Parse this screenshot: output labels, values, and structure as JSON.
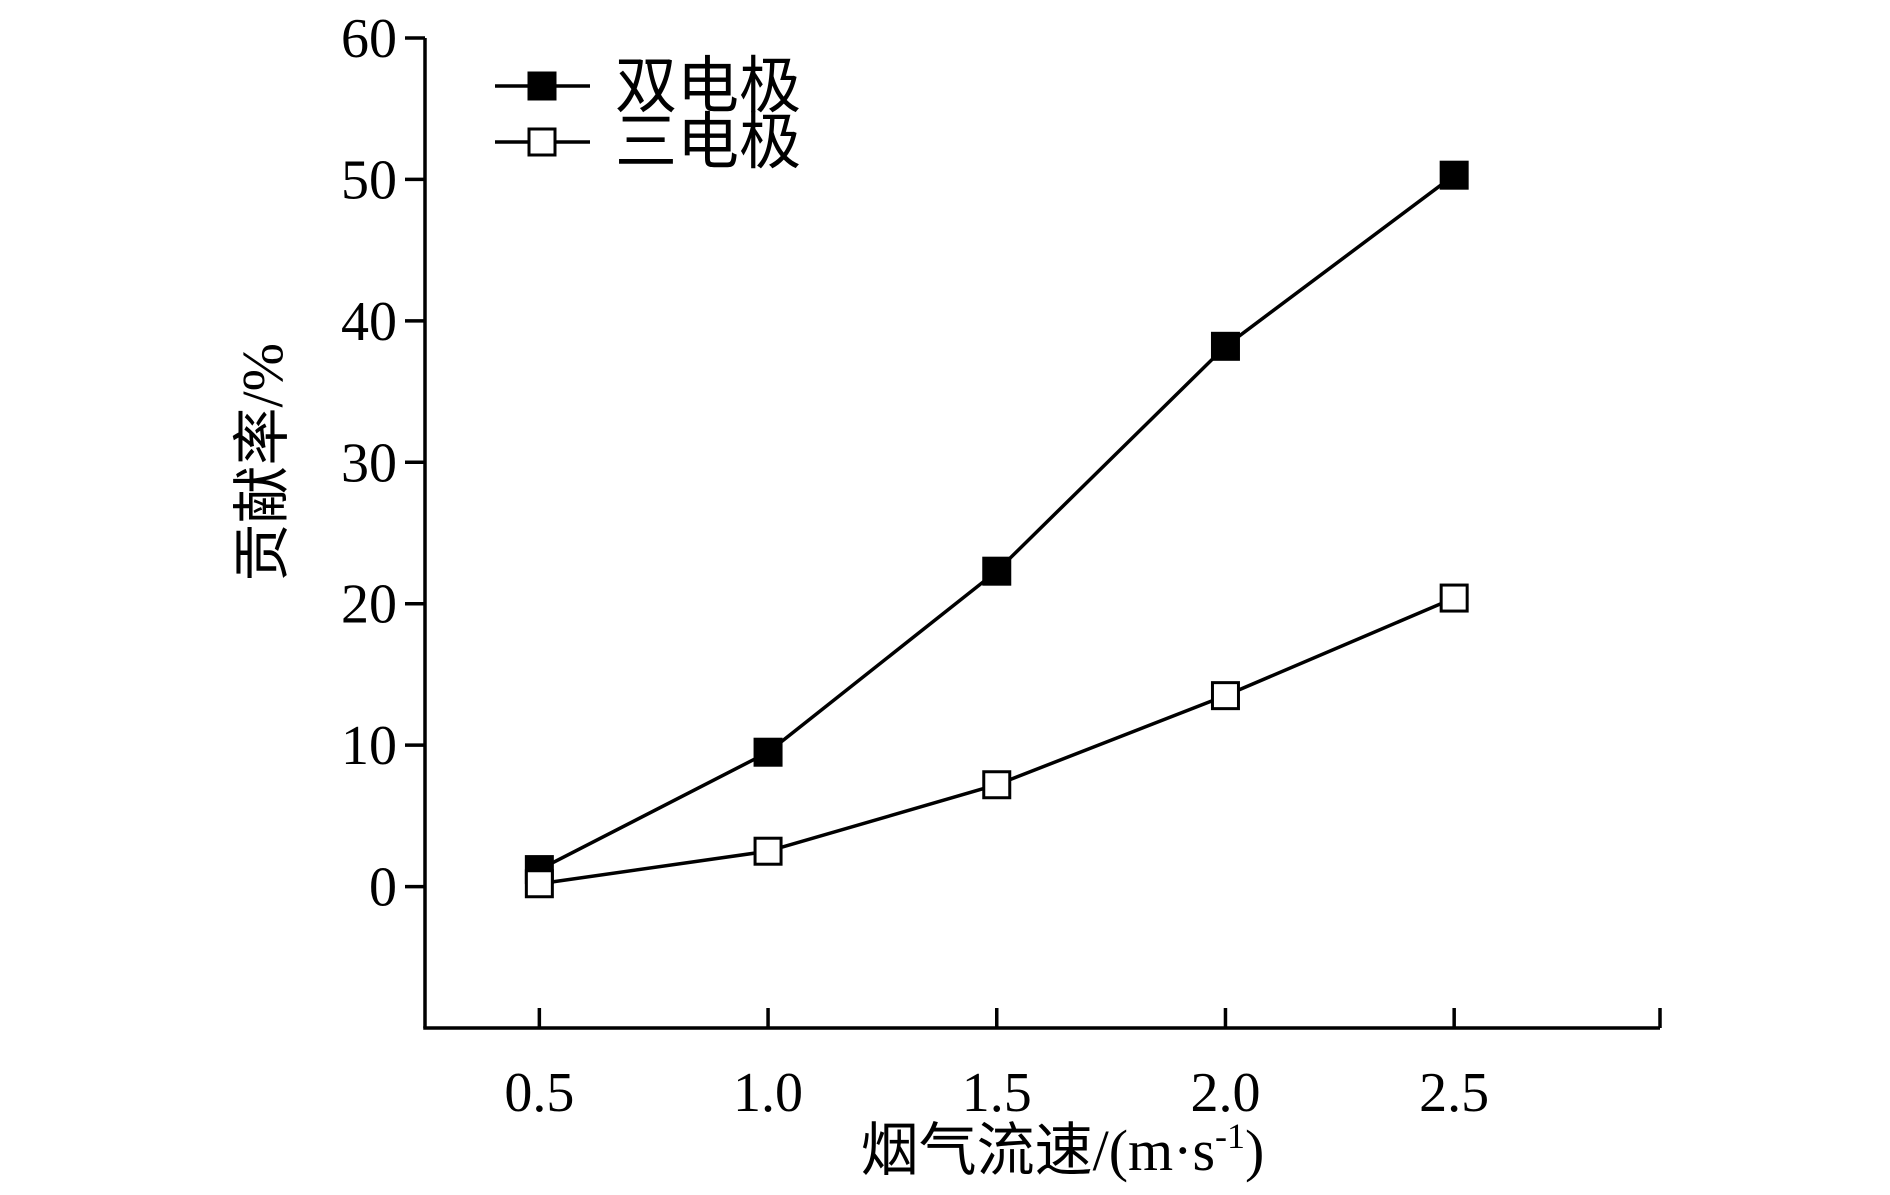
{
  "chart_data": {
    "type": "line",
    "title": "",
    "xlabel": "烟气流速/(m·s",
    "xlabel_superscript": "-1",
    "xlabel_suffix": ")",
    "ylabel": "贡献率/%",
    "x": [
      0.5,
      1.0,
      1.5,
      2.0,
      2.5
    ],
    "xlim": [
      0.25,
      2.95
    ],
    "ylim": [
      -10,
      60
    ],
    "xticks": [
      "0.5",
      "1.0",
      "1.5",
      "2.0",
      "2.5"
    ],
    "yticks": [
      "0",
      "10",
      "20",
      "30",
      "40",
      "50",
      "60"
    ],
    "grid": false,
    "legend_position": "top-left",
    "series": [
      {
        "name": "双电极",
        "marker": "filled-square",
        "color": "#000000",
        "values": [
          1.2,
          9.5,
          22.3,
          38.2,
          50.3
        ]
      },
      {
        "name": "三电极",
        "marker": "open-square",
        "color": "#000000",
        "values": [
          0.2,
          2.5,
          7.2,
          13.5,
          20.4
        ]
      }
    ]
  }
}
